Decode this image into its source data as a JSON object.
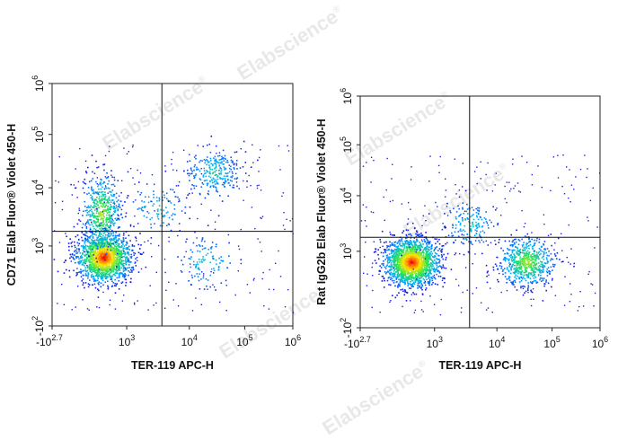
{
  "watermark": {
    "text": "Elabscience",
    "mark": "®"
  },
  "chart_data": [
    {
      "type": "scatter",
      "title": "",
      "xlabel": "TER-119 APC-H",
      "ylabel": "CD71 Elab Fluor® Violet 450-H",
      "x_ticks": [
        {
          "base": "-10",
          "exp": "2.7"
        },
        {
          "base": "10",
          "exp": "3"
        },
        {
          "base": "10",
          "exp": "4"
        },
        {
          "base": "10",
          "exp": "5"
        },
        {
          "base": "10",
          "exp": "6"
        }
      ],
      "y_ticks": [
        {
          "base": "-10",
          "exp": "2"
        },
        {
          "base": "10",
          "exp": "3"
        },
        {
          "base": "10",
          "exp": "4"
        },
        {
          "base": "10",
          "exp": "5"
        },
        {
          "base": "10",
          "exp": "6"
        }
      ],
      "scale": "biexponential",
      "gate": {
        "x": 5000,
        "y": 600
      },
      "populations": [
        {
          "x": 400,
          "y": 150,
          "share": 0.62
        },
        {
          "x": 300,
          "y": 1500,
          "share": 0.2
        },
        {
          "x": 40000,
          "y": 12000,
          "share": 0.1
        },
        {
          "x": 30000,
          "y": 100,
          "share": 0.04
        },
        {
          "x": 4000,
          "y": 2000,
          "share": 0.04
        }
      ]
    },
    {
      "type": "scatter",
      "title": "",
      "xlabel": "TER-119 APC-H",
      "ylabel": "Rat IgG2b Elab Fluor® Violet 450-H",
      "x_ticks": [
        {
          "base": "-10",
          "exp": "2.7"
        },
        {
          "base": "10",
          "exp": "3"
        },
        {
          "base": "10",
          "exp": "4"
        },
        {
          "base": "10",
          "exp": "5"
        },
        {
          "base": "10",
          "exp": "6"
        }
      ],
      "y_ticks": [
        {
          "base": "-10",
          "exp": "2"
        },
        {
          "base": "10",
          "exp": "3"
        },
        {
          "base": "10",
          "exp": "4"
        },
        {
          "base": "10",
          "exp": "5"
        },
        {
          "base": "10",
          "exp": "6"
        }
      ],
      "scale": "biexponential",
      "gate": {
        "x": 5000,
        "y": 600
      },
      "populations": [
        {
          "x": 400,
          "y": 150,
          "share": 0.7
        },
        {
          "x": 50000,
          "y": 150,
          "share": 0.24
        },
        {
          "x": 5000,
          "y": 1200,
          "share": 0.06
        }
      ]
    }
  ]
}
